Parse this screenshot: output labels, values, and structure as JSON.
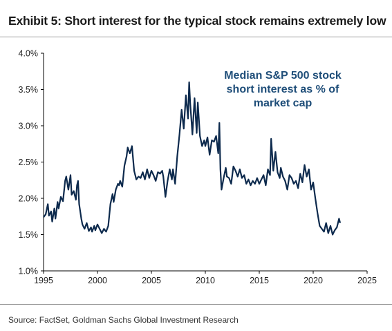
{
  "header": {
    "title": "Exhibit 5: Short interest for the typical stock remains extremely low"
  },
  "footer": {
    "source": "Source: FactSet, Goldman Sachs Global Investment Research"
  },
  "colors": {
    "line": "#0d2a4d",
    "annotation": "#1f4e79",
    "axis": "#000000"
  },
  "chart_data": {
    "type": "line",
    "title": "",
    "xlabel": "",
    "ylabel": "",
    "xlim": [
      1995,
      2025
    ],
    "ylim": [
      1.0,
      4.0
    ],
    "x_ticks": [
      1995,
      2000,
      2005,
      2010,
      2015,
      2020,
      2025
    ],
    "x_tick_labels": [
      "1995",
      "2000",
      "2005",
      "2010",
      "2015",
      "2020",
      "2025"
    ],
    "y_ticks": [
      1.0,
      1.5,
      2.0,
      2.5,
      3.0,
      3.5,
      4.0
    ],
    "y_tick_labels": [
      "1.0%",
      "1.5%",
      "2.0%",
      "2.5%",
      "3.0%",
      "3.5%",
      "4.0%"
    ],
    "grid": false,
    "annotation": [
      "Median S&P 500 stock",
      "short interest as % of",
      "market cap"
    ],
    "series": [
      {
        "x": [
          1995.0,
          1995.2,
          1995.4,
          1995.5,
          1995.7,
          1995.8,
          1996.0,
          1996.1,
          1996.3,
          1996.4,
          1996.6,
          1996.8,
          1997.0,
          1997.1,
          1997.3,
          1997.5,
          1997.6,
          1997.8,
          1998.0,
          1998.1,
          1998.2,
          1998.3,
          1998.5,
          1998.6,
          1998.8,
          1999.0,
          1999.2,
          1999.4,
          1999.5,
          1999.7,
          1999.8,
          2000.0,
          2000.2,
          2000.4,
          2000.6,
          2000.8,
          2001.0,
          2001.2,
          2001.4,
          2001.5,
          2001.7,
          2001.9,
          2002.0,
          2002.1,
          2002.3,
          2002.5,
          2002.7,
          2002.8,
          2003.0,
          2003.2,
          2003.4,
          2003.6,
          2003.8,
          2004.0,
          2004.2,
          2004.4,
          2004.6,
          2004.8,
          2005.0,
          2005.2,
          2005.4,
          2005.6,
          2005.8,
          2006.0,
          2006.1,
          2006.3,
          2006.5,
          2006.7,
          2006.9,
          2007.0,
          2007.2,
          2007.4,
          2007.6,
          2007.8,
          2008.0,
          2008.2,
          2008.4,
          2008.5,
          2008.6,
          2008.7,
          2008.8,
          2009.0,
          2009.2,
          2009.3,
          2009.4,
          2009.5,
          2009.7,
          2009.9,
          2010.0,
          2010.2,
          2010.4,
          2010.6,
          2010.8,
          2011.0,
          2011.2,
          2011.3,
          2011.4,
          2011.5,
          2011.7,
          2011.9,
          2012.0,
          2012.2,
          2012.4,
          2012.6,
          2012.8,
          2013.0,
          2013.2,
          2013.4,
          2013.6,
          2013.8,
          2014.0,
          2014.2,
          2014.4,
          2014.6,
          2014.8,
          2015.0,
          2015.2,
          2015.4,
          2015.6,
          2015.8,
          2016.0,
          2016.1,
          2016.3,
          2016.5,
          2016.7,
          2016.9,
          2017.0,
          2017.2,
          2017.4,
          2017.6,
          2017.8,
          2018.0,
          2018.2,
          2018.4,
          2018.6,
          2018.8,
          2019.0,
          2019.2,
          2019.4,
          2019.6,
          2019.8,
          2020.0,
          2020.2,
          2020.4,
          2020.6,
          2020.8,
          2021.0,
          2021.2,
          2021.4,
          2021.6,
          2021.8,
          2022.0,
          2022.2,
          2022.4,
          2022.5
        ],
        "y": [
          1.74,
          1.78,
          1.92,
          1.76,
          1.82,
          1.68,
          1.86,
          1.72,
          1.95,
          1.86,
          2.02,
          1.96,
          2.24,
          2.3,
          2.12,
          2.32,
          2.05,
          2.1,
          1.98,
          2.18,
          2.24,
          1.92,
          1.72,
          1.64,
          1.58,
          1.66,
          1.55,
          1.6,
          1.54,
          1.62,
          1.56,
          1.64,
          1.58,
          1.52,
          1.58,
          1.54,
          1.62,
          1.92,
          2.06,
          1.95,
          2.12,
          2.2,
          2.18,
          2.24,
          2.16,
          2.45,
          2.58,
          2.7,
          2.62,
          2.72,
          2.38,
          2.26,
          2.3,
          2.28,
          2.36,
          2.26,
          2.4,
          2.28,
          2.38,
          2.32,
          2.24,
          2.36,
          2.34,
          2.38,
          2.3,
          2.02,
          2.24,
          2.4,
          2.26,
          2.4,
          2.2,
          2.58,
          2.88,
          3.22,
          2.96,
          3.42,
          3.1,
          3.6,
          3.3,
          3.1,
          2.88,
          3.38,
          2.9,
          3.32,
          3.1,
          2.86,
          2.72,
          2.8,
          2.72,
          2.84,
          2.6,
          2.8,
          2.78,
          2.86,
          2.62,
          3.04,
          2.4,
          2.12,
          2.28,
          2.42,
          2.3,
          2.28,
          2.2,
          2.44,
          2.38,
          2.3,
          2.4,
          2.28,
          2.32,
          2.2,
          2.26,
          2.18,
          2.24,
          2.2,
          2.28,
          2.2,
          2.26,
          2.32,
          2.18,
          2.4,
          2.32,
          2.82,
          2.38,
          2.64,
          2.36,
          2.28,
          2.42,
          2.3,
          2.24,
          2.12,
          2.32,
          2.28,
          2.2,
          2.24,
          2.14,
          2.34,
          2.22,
          2.46,
          2.3,
          2.4,
          2.12,
          2.22,
          2.0,
          1.8,
          1.62,
          1.58,
          1.54,
          1.66,
          1.52,
          1.62,
          1.5,
          1.56,
          1.6,
          1.72,
          1.66
        ]
      }
    ]
  }
}
